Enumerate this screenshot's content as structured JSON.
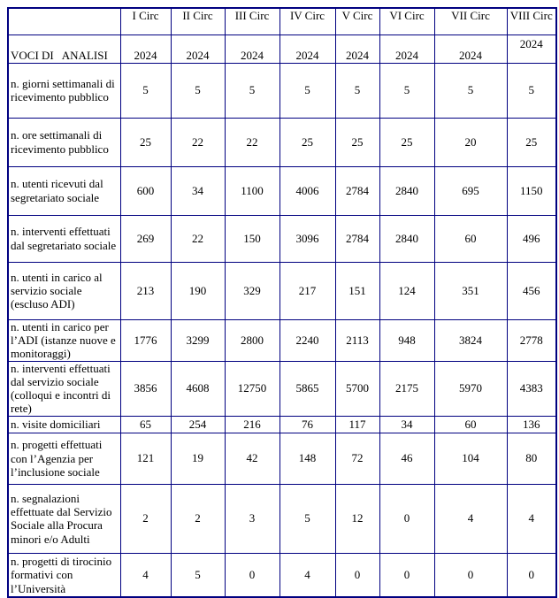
{
  "colors": {
    "border": "#000080",
    "text": "#000000",
    "background": "#ffffff"
  },
  "table": {
    "title": "VOCI DI   ANALISI",
    "corner": "",
    "columns": [
      "I Circ",
      "II Circ",
      "III Circ",
      "IV Circ",
      "V Circ",
      "VI Circ",
      "VII Circ",
      "VIII Circ"
    ],
    "years": [
      "2024",
      "2024",
      "2024",
      "2024",
      "2024",
      "2024",
      "2024",
      "2024"
    ],
    "rows": [
      {
        "label": "n. giorni settimanali di ricevimento pubblico",
        "values": [
          "5",
          "5",
          "5",
          "5",
          "5",
          "5",
          "5",
          "5"
        ]
      },
      {
        "label": "n. ore settimanali di ricevimento pubblico",
        "values": [
          "25",
          "22",
          "22",
          "25",
          "25",
          "25",
          "20",
          "25"
        ]
      },
      {
        "label": "n. utenti ricevuti dal segretariato sociale",
        "values": [
          "600",
          "34",
          "1100",
          "4006",
          "2784",
          "2840",
          "695",
          "1150"
        ]
      },
      {
        "label": "n. interventi effettuati dal segretariato sociale",
        "values": [
          "269",
          "22",
          "150",
          "3096",
          "2784",
          "2840",
          "60",
          "496"
        ]
      },
      {
        "label": "n. utenti in carico al servizio sociale (escluso ADI)",
        "values": [
          "213",
          "190",
          "329",
          "217",
          "151",
          "124",
          "351",
          "456"
        ]
      },
      {
        "label": "n. utenti in carico per l’ADI (istanze nuove e monitoraggi)",
        "values": [
          "1776",
          "3299",
          "2800",
          "2240",
          "2113",
          "948",
          "3824",
          "2778"
        ]
      },
      {
        "label": "n. interventi effettuati dal servizio sociale (colloqui e incontri di rete)",
        "values": [
          "3856",
          "4608",
          "12750",
          "5865",
          "5700",
          "2175",
          "5970",
          "4383"
        ]
      },
      {
        "label": "n. visite domiciliari",
        "values": [
          "65",
          "254",
          "216",
          "76",
          "117",
          "34",
          "60",
          "136"
        ]
      },
      {
        "label": "n. progetti effettuati con l’Agenzia per l’inclusione sociale",
        "values": [
          "121",
          "19",
          "42",
          "148",
          "72",
          "46",
          "104",
          "80"
        ]
      },
      {
        "label": "n. segnalazioni effettuate dal Servizio Sociale alla Procura minori e/o Adulti",
        "values": [
          "2",
          "2",
          "3",
          "5",
          "12",
          "0",
          "4",
          "4"
        ]
      },
      {
        "label": "n. progetti di tirocinio formativi con l’Università",
        "values": [
          "4",
          "5",
          "0",
          "4",
          "0",
          "0",
          "0",
          "0"
        ]
      }
    ]
  }
}
